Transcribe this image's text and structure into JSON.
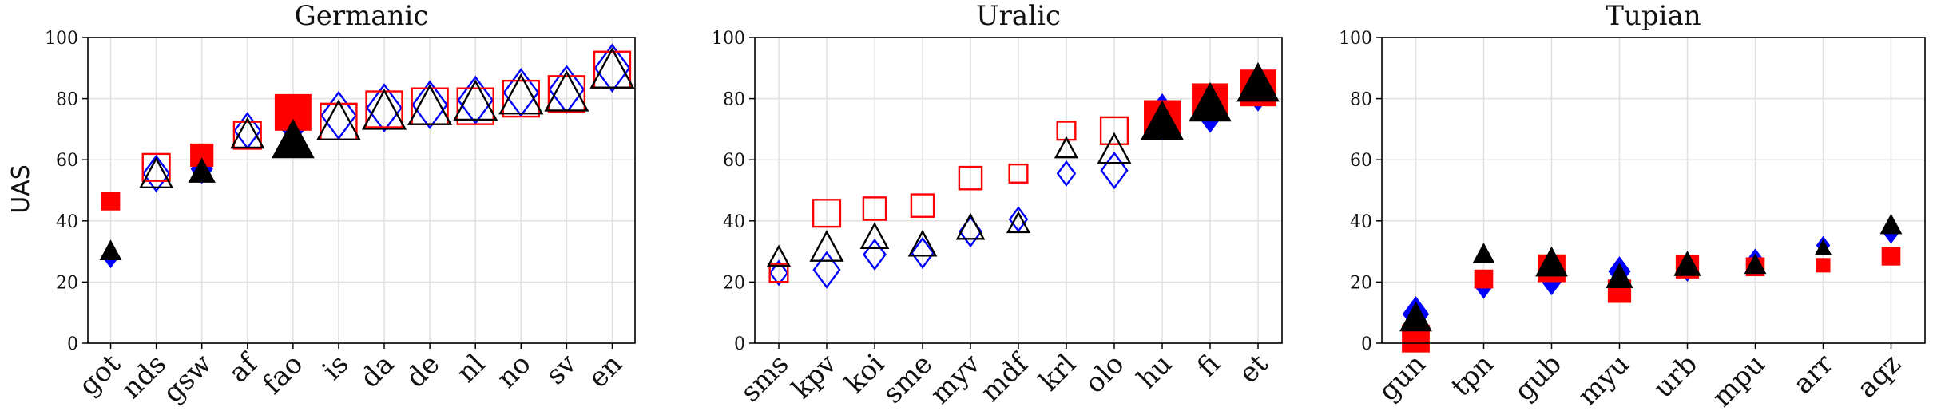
{
  "chart_data": [
    {
      "type": "scatter",
      "title": "Germanic",
      "ylabel": "UAS",
      "ylim": [
        0,
        100
      ],
      "yticks": [
        "0",
        "20",
        "40",
        "60",
        "80",
        "100"
      ],
      "grid": true,
      "categories": [
        "got",
        "nds",
        "gsw",
        "af",
        "fao",
        "is",
        "da",
        "de",
        "nl",
        "no",
        "sv",
        "en"
      ],
      "marker_level": [
        2,
        4,
        3,
        4,
        6,
        6,
        6,
        6,
        6,
        6,
        6,
        6
      ],
      "series": [
        {
          "marker": "diamond",
          "filled": [
            true,
            false,
            true,
            false,
            true,
            false,
            false,
            false,
            false,
            false,
            false,
            false
          ],
          "values": [
            28.5,
            55.5,
            57,
            69.5,
            72.5,
            74.5,
            77,
            78,
            79.5,
            82,
            83,
            90
          ]
        },
        {
          "marker": "square",
          "filled": [
            true,
            false,
            true,
            false,
            true,
            false,
            false,
            false,
            false,
            false,
            false,
            false
          ],
          "values": [
            46.5,
            57.5,
            61.5,
            68,
            75.5,
            72.5,
            76.5,
            77.5,
            77.5,
            80,
            81.5,
            89.5
          ]
        },
        {
          "marker": "triangle",
          "filled": [
            true,
            false,
            true,
            false,
            true,
            false,
            false,
            false,
            false,
            false,
            false,
            false
          ],
          "values": [
            30,
            55,
            56,
            68,
            66,
            72,
            75.5,
            77,
            78.5,
            80.5,
            81.5,
            89
          ]
        }
      ]
    },
    {
      "type": "scatter",
      "title": "Uralic",
      "ylim": [
        0,
        100
      ],
      "yticks": [
        "0",
        "20",
        "40",
        "60",
        "80",
        "100"
      ],
      "grid": true,
      "categories": [
        "sms",
        "kpv",
        "koi",
        "sme",
        "myv",
        "mdf",
        "krl",
        "olo",
        "hu",
        "fi",
        "et"
      ],
      "marker_level": [
        2,
        4,
        3,
        3,
        3,
        2,
        2,
        4,
        6,
        6,
        6
      ],
      "series": [
        {
          "marker": "diamond",
          "filled": [
            false,
            false,
            false,
            false,
            false,
            false,
            false,
            false,
            true,
            true,
            true
          ],
          "values": [
            23,
            24,
            29,
            29.5,
            36.5,
            40.5,
            55.5,
            56.5,
            74,
            76.5,
            83.5
          ]
        },
        {
          "marker": "square",
          "filled": [
            false,
            false,
            false,
            false,
            false,
            false,
            false,
            false,
            true,
            true,
            true
          ],
          "values": [
            23,
            42.5,
            44,
            45,
            54,
            55.5,
            69.5,
            69.5,
            73.5,
            79,
            83.5
          ]
        },
        {
          "marker": "triangle",
          "filled": [
            false,
            false,
            false,
            false,
            false,
            false,
            false,
            false,
            true,
            true,
            true
          ],
          "values": [
            28,
            31,
            34.5,
            32,
            37.5,
            39,
            63.5,
            63,
            72,
            78,
            84.5
          ]
        }
      ]
    },
    {
      "type": "scatter",
      "title": "Tupian",
      "ylim": [
        0,
        100
      ],
      "yticks": [
        "0",
        "20",
        "40",
        "60",
        "80",
        "100"
      ],
      "grid": true,
      "categories": [
        "gun",
        "tpn",
        "gub",
        "myu",
        "urb",
        "mpu",
        "arr",
        "aqz"
      ],
      "marker_level": [
        4,
        2,
        4,
        3,
        3,
        2,
        1,
        2
      ],
      "series": [
        {
          "marker": "diamond",
          "filled": [
            true,
            true,
            true,
            true,
            true,
            true,
            true,
            true
          ],
          "values": [
            9.5,
            18.5,
            21.5,
            23.5,
            25,
            27,
            32,
            36.5
          ]
        },
        {
          "marker": "square",
          "filled": [
            true,
            true,
            true,
            true,
            true,
            true,
            true,
            true
          ],
          "values": [
            1.5,
            21,
            24.5,
            17,
            25,
            25,
            25.5,
            28.5
          ]
        },
        {
          "marker": "triangle",
          "filled": [
            true,
            true,
            true,
            true,
            true,
            true,
            true,
            true
          ],
          "values": [
            8,
            29,
            26,
            21.5,
            25.5,
            25.5,
            31,
            38.5
          ]
        }
      ]
    }
  ],
  "colors": {
    "diamond": "#0000ff",
    "square": "#ff0000",
    "triangle": "#000000",
    "grid": "#e0e0e0"
  }
}
